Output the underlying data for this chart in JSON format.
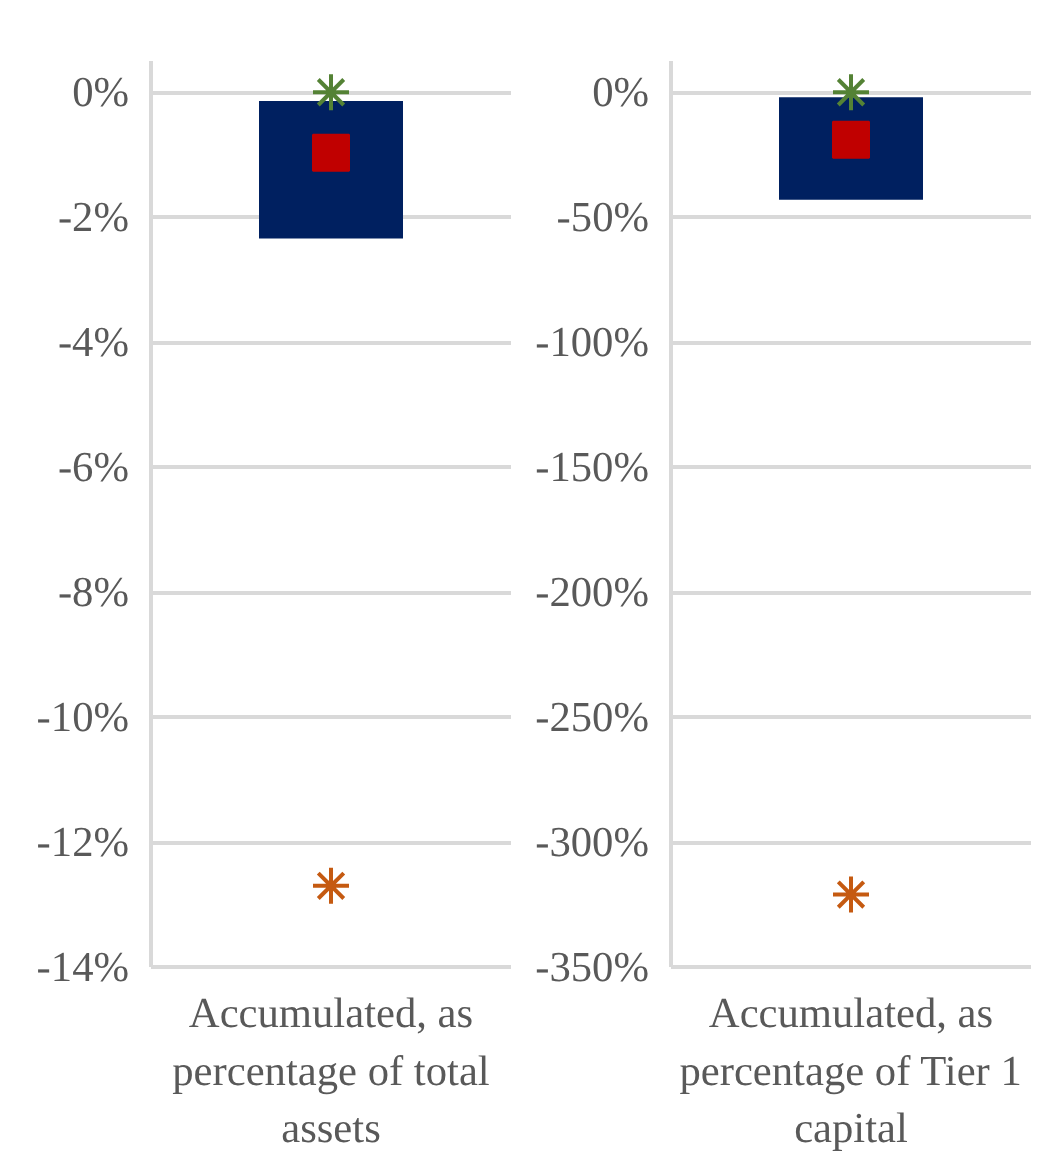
{
  "chart_data": [
    {
      "type": "bar",
      "categories": [
        "Accumulated, as percentage of total assets"
      ],
      "ylim": [
        -14,
        0.5
      ],
      "marker": "cross",
      "yticks": [
        {
          "value": 0,
          "label": "0%"
        },
        {
          "value": -2,
          "label": "-2%"
        },
        {
          "value": -4,
          "label": "-4%"
        },
        {
          "value": -6,
          "label": "-6%"
        },
        {
          "value": -8,
          "label": "-8%"
        },
        {
          "value": -10,
          "label": "-10%"
        },
        {
          "value": -12,
          "label": "-12%"
        },
        {
          "value": -14,
          "label": "-14%"
        }
      ],
      "grid": "y",
      "series": [
        {
          "color": "#002060",
          "values": [
            -2.2
          ],
          "base": [
            -0.14
          ]
        },
        {
          "type": "scatter",
          "marker": "square",
          "color": "#c00000",
          "values": [
            -0.97
          ],
          "x": [
            "Accumulated, as percentage of total assets"
          ]
        },
        {
          "type": "scatter",
          "color": "#548235",
          "values": [
            0
          ],
          "x": [
            "Accumulated, as percentage of total assets"
          ]
        },
        {
          "type": "scatter",
          "color": "#c55a11",
          "values": [
            -12.7
          ],
          "x": [
            "Accumulated, as percentage of total assets"
          ]
        }
      ]
    },
    {
      "type": "bar",
      "categories": [
        "Accumulated, as percentage of Tier 1 capital"
      ],
      "ylim": [
        -350,
        12.5
      ],
      "marker": "cross",
      "yticks": [
        {
          "value": 0,
          "label": "0%"
        },
        {
          "value": -50,
          "label": "-50%"
        },
        {
          "value": -100,
          "label": "-100%"
        },
        {
          "value": -150,
          "label": "-150%"
        },
        {
          "value": -200,
          "label": "-200%"
        },
        {
          "value": -250,
          "label": "-250%"
        },
        {
          "value": -300,
          "label": "-300%"
        },
        {
          "value": -350,
          "label": "-350%"
        }
      ],
      "grid": "y",
      "series": [
        {
          "color": "#002060",
          "values": [
            -41
          ],
          "base": [
            -2
          ]
        },
        {
          "type": "scatter",
          "marker": "square",
          "color": "#c00000",
          "values": [
            -19
          ],
          "x": [
            "Accumulated, as percentage of Tier 1 capital"
          ]
        },
        {
          "type": "scatter",
          "color": "#548235",
          "values": [
            0
          ],
          "x": [
            "Accumulated, as percentage of Tier 1 capital"
          ]
        },
        {
          "type": "scatter",
          "color": "#c55a11",
          "values": [
            -321
          ],
          "x": [
            "Accumulated, as percentage of Tier 1 capital"
          ]
        }
      ]
    }
  ]
}
